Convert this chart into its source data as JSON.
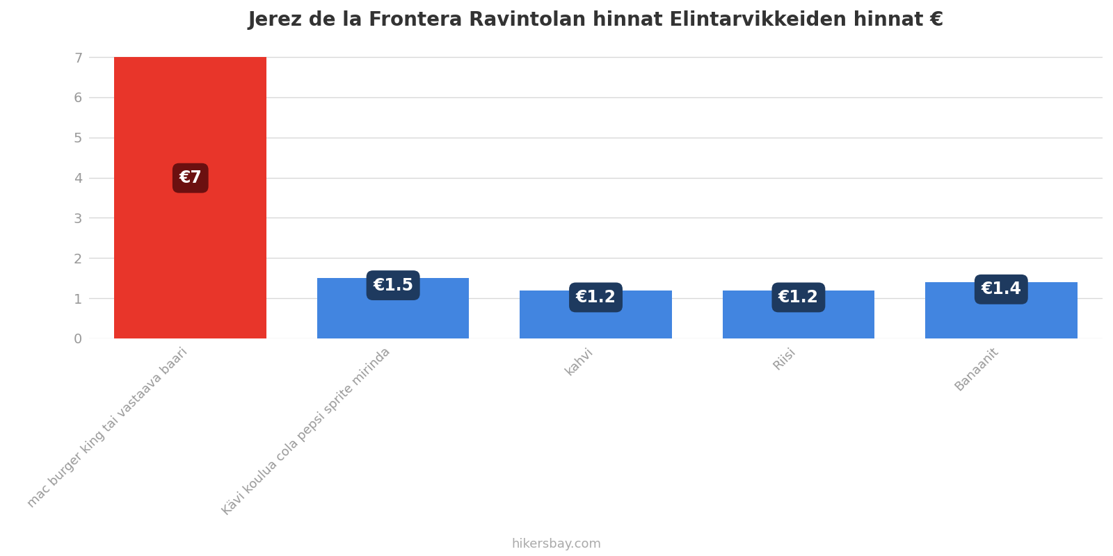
{
  "title": "Jerez de la Frontera Ravintolan hinnat Elintarvikkeiden hinnat €",
  "categories": [
    "mac burger king tai vastaava baari",
    "Kävi koulua cola pepsi sprite mirinda",
    "kahvi",
    "Riisi",
    "Banaanit"
  ],
  "values": [
    7,
    1.5,
    1.2,
    1.2,
    1.4
  ],
  "bar_colors": [
    "#e8352a",
    "#4285e0",
    "#4285e0",
    "#4285e0",
    "#4285e0"
  ],
  "label_bg_colors": [
    "#6b1010",
    "#1e3a5f",
    "#1e3a5f",
    "#1e3a5f",
    "#1e3a5f"
  ],
  "labels": [
    "€7",
    "€1.5",
    "€1.2",
    "€1.2",
    "€1.4"
  ],
  "ylim": [
    0,
    7.3
  ],
  "yticks": [
    0,
    1,
    2,
    3,
    4,
    5,
    6,
    7
  ],
  "background_color": "#ffffff",
  "grid_color": "#d8d8d8",
  "footer_text": "hikersbay.com",
  "title_fontsize": 20,
  "label_fontsize": 17,
  "tick_fontsize": 14,
  "footer_fontsize": 13
}
